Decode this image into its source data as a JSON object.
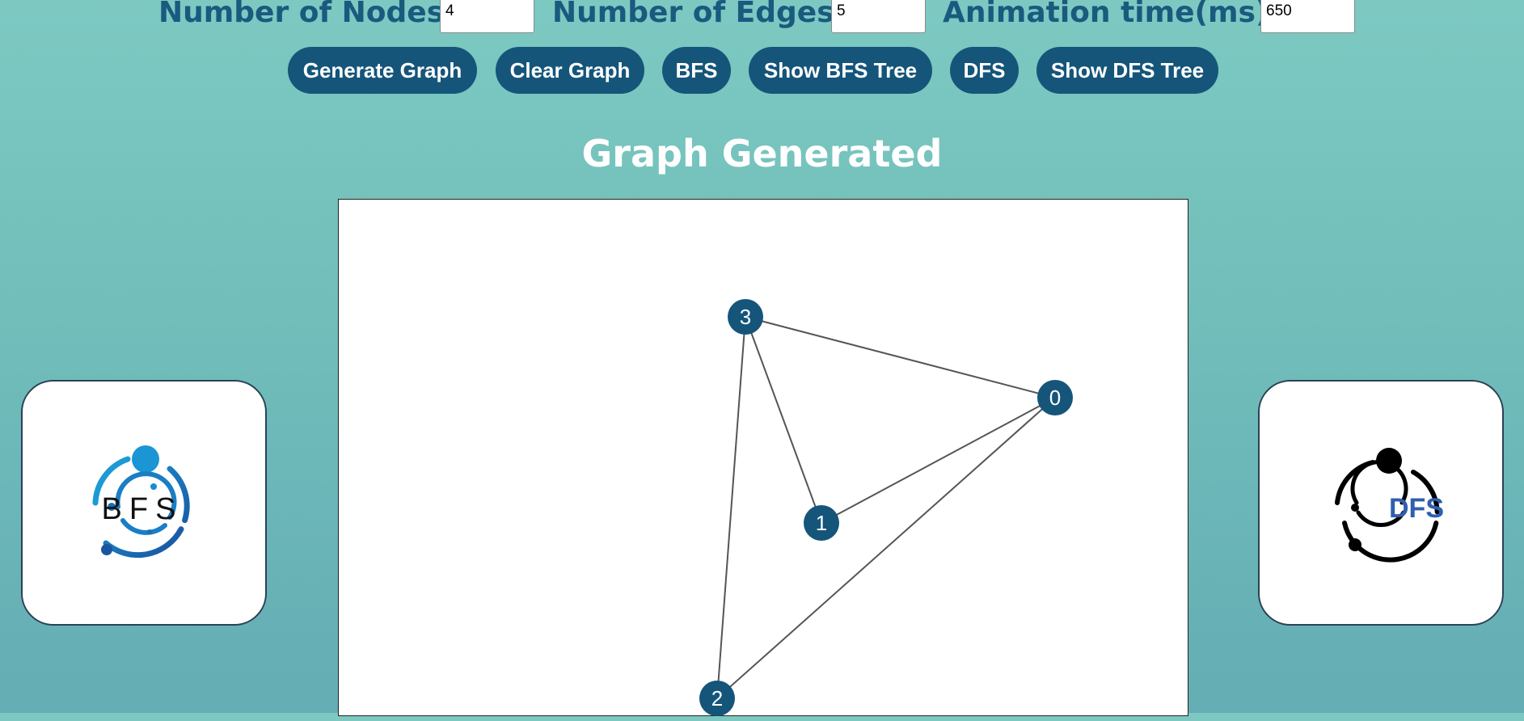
{
  "controls": {
    "nodes_label": "Number of Nodes:",
    "nodes_value": "4",
    "edges_label": "Number of Edges:",
    "edges_value": "5",
    "time_label": "Animation time(ms):",
    "time_value": "650"
  },
  "buttons": {
    "generate": "Generate Graph",
    "clear": "Clear Graph",
    "bfs": "BFS",
    "show_bfs_tree": "Show BFS Tree",
    "dfs": "DFS",
    "show_dfs_tree": "Show DFS Tree"
  },
  "status": "Graph Generated",
  "graph": {
    "nodes": [
      "0",
      "1",
      "2",
      "3"
    ],
    "edges": [
      [
        "3",
        "0"
      ],
      [
        "3",
        "1"
      ],
      [
        "3",
        "2"
      ],
      [
        "0",
        "1"
      ],
      [
        "0",
        "2"
      ]
    ]
  },
  "logos": {
    "bfs_text": "BFS",
    "dfs_text": "DFS"
  },
  "colors": {
    "accent": "#15557a",
    "label": "#1a5a7e",
    "bfs_blue": "#1b87c9",
    "dfs_blue": "#2f5fad"
  }
}
